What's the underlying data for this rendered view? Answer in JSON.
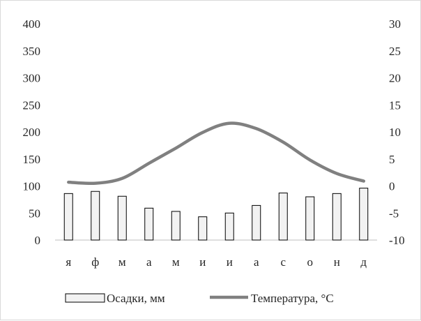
{
  "chart_data": {
    "type": "bar+line",
    "categories": [
      "я",
      "ф",
      "м",
      "а",
      "м",
      "и",
      "и",
      "а",
      "с",
      "о",
      "н",
      "д"
    ],
    "series": [
      {
        "name": "Осадки, мм",
        "type": "bar",
        "axis": "left",
        "values": [
          86,
          90,
          81,
          59,
          53,
          43,
          50,
          64,
          87,
          80,
          86,
          96
        ],
        "color": "#f2f2f2",
        "stroke": "#000000"
      },
      {
        "name": "Температура, °С",
        "type": "line",
        "axis": "right",
        "values": [
          0.7,
          0.5,
          1.4,
          4.2,
          7.0,
          9.9,
          11.6,
          10.6,
          8.1,
          4.8,
          2.3,
          0.9
        ],
        "color": "#808080"
      }
    ],
    "y_left": {
      "min": 0,
      "max": 400,
      "step": 50,
      "ticks": [
        "0",
        "50",
        "100",
        "150",
        "200",
        "250",
        "300",
        "350",
        "400"
      ]
    },
    "y_right": {
      "min": -10,
      "max": 30,
      "step": 5,
      "ticks": [
        "-10",
        "-5",
        "0",
        "5",
        "10",
        "15",
        "20",
        "25",
        "30"
      ]
    },
    "grid": false,
    "legend_position": "bottom"
  }
}
